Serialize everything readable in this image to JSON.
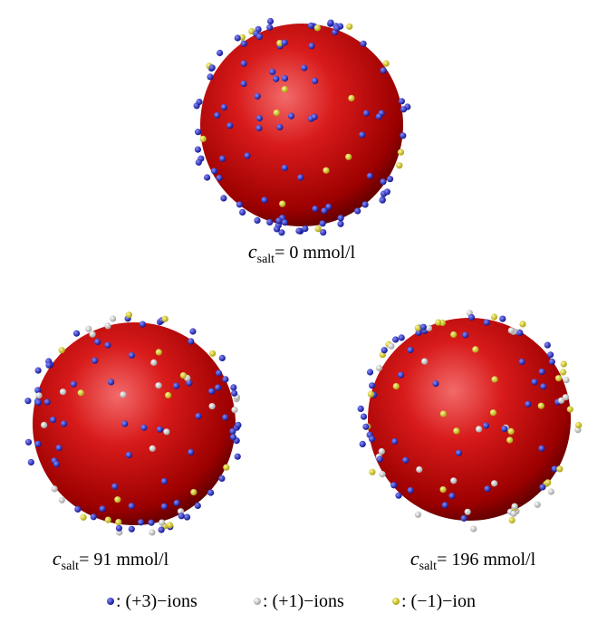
{
  "panels": [
    {
      "symbol": "c",
      "subscript": "salt",
      "text": "= 0 mmol/l"
    },
    {
      "symbol": "c",
      "subscript": "salt",
      "text": "= 91 mmol/l"
    },
    {
      "symbol": "c",
      "subscript": "salt",
      "text": "= 196 mmol/l"
    }
  ],
  "legend": [
    {
      "text": ": (+3)−ions"
    },
    {
      "text": ": (+1)−ions"
    },
    {
      "text": ": (−1)−ion"
    }
  ]
}
